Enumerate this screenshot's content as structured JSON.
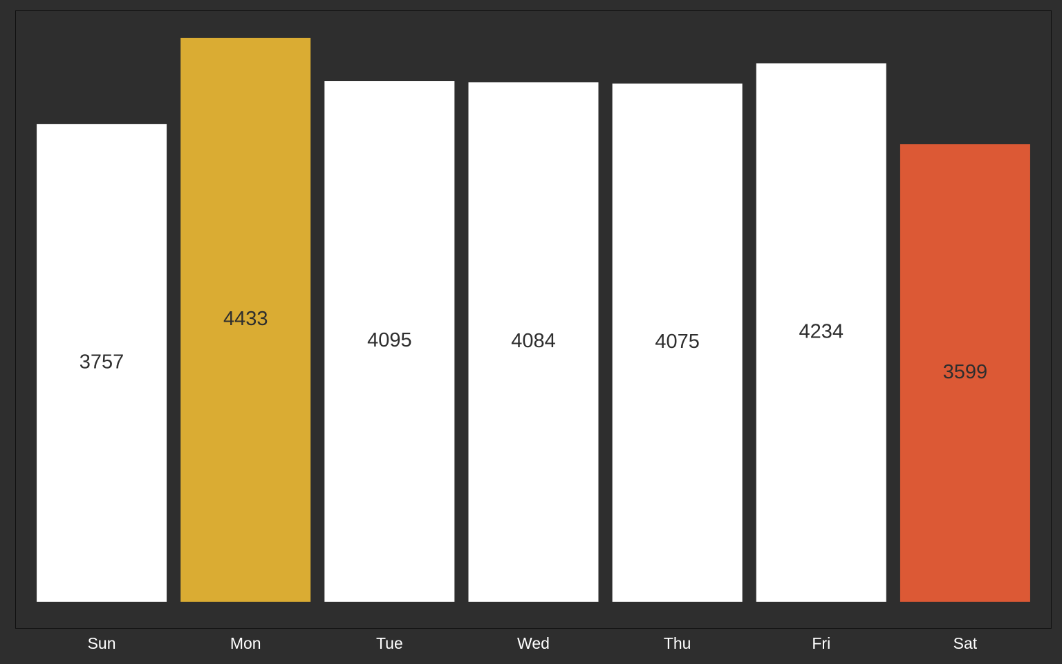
{
  "chart_data": {
    "type": "bar",
    "categories": [
      "Sun",
      "Mon",
      "Tue",
      "Wed",
      "Thu",
      "Fri",
      "Sat"
    ],
    "values": [
      3757,
      4433,
      4095,
      4084,
      4075,
      4234,
      3599
    ],
    "ylim": [
      0,
      4650
    ],
    "grid": false,
    "legend": "none",
    "colors": {
      "background": "#2e2e2e",
      "frame": "#111111",
      "default_bar": "#ffffff",
      "highlight_max": "#daac33",
      "highlight_min": "#dc5935",
      "value_label": "#2e2e2e",
      "category_label": "#ffffff"
    },
    "bar_colors": [
      "#ffffff",
      "#daac33",
      "#ffffff",
      "#ffffff",
      "#ffffff",
      "#ffffff",
      "#dc5935"
    ]
  }
}
